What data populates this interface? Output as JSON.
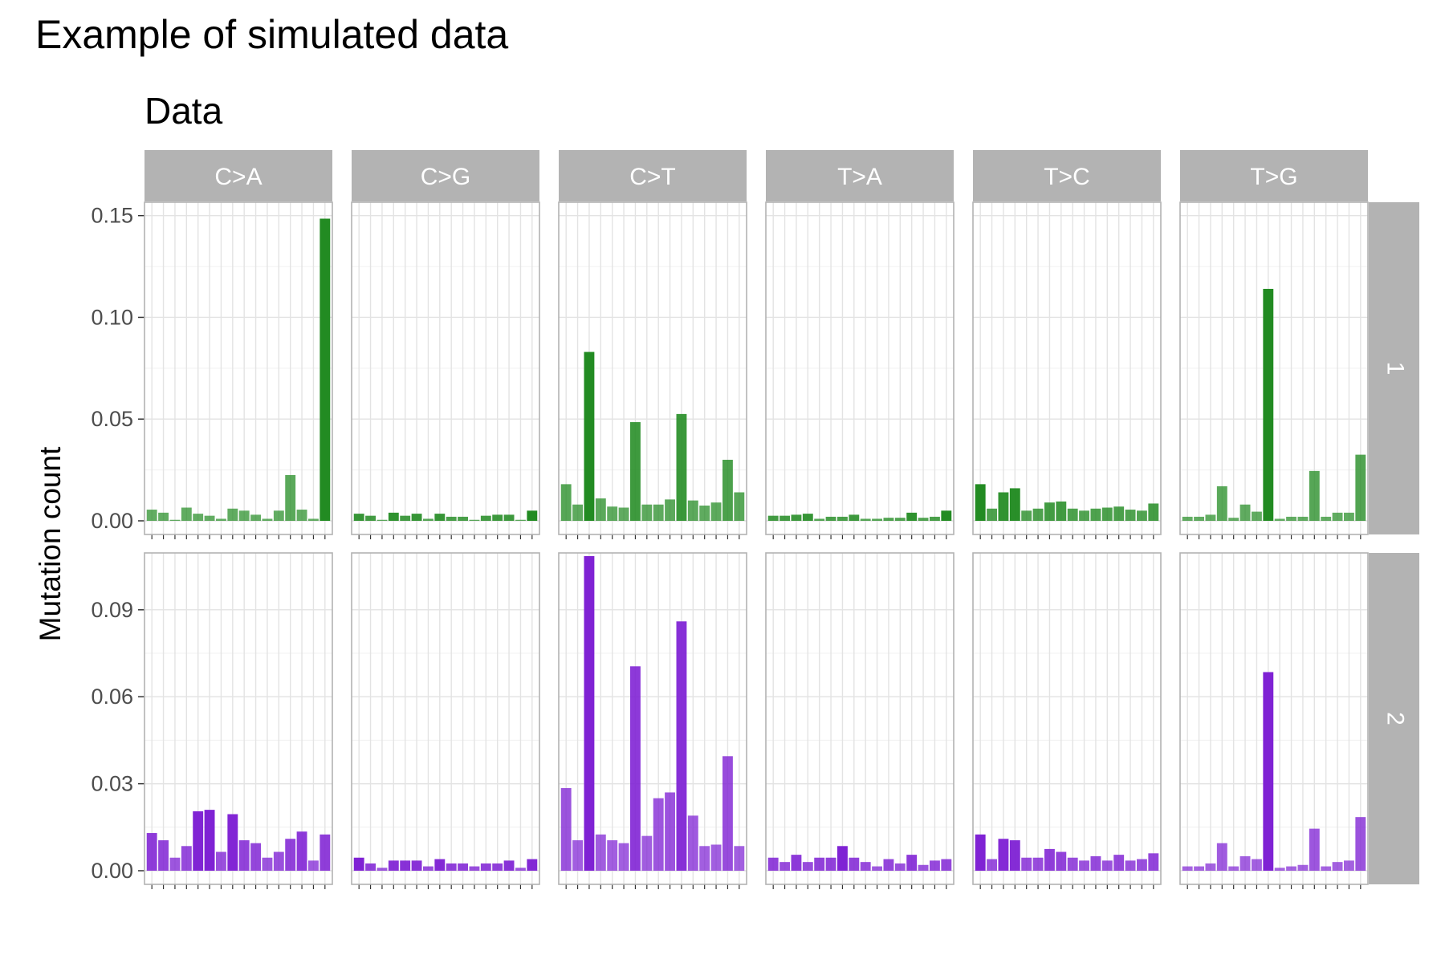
{
  "title": "Example of simulated data",
  "subtitle": "Data",
  "chart_data": {
    "type": "bar",
    "facet_columns": [
      "C>A",
      "C>G",
      "C>T",
      "T>A",
      "T>C",
      "T>G"
    ],
    "facet_rows": [
      "1",
      "2"
    ],
    "ylabel": "Mutation count",
    "xlabel": "",
    "grid": true,
    "rows": [
      {
        "label": "1",
        "color": "#228b22",
        "ylim": [
          0,
          0.155
        ],
        "yticks": [
          0.0,
          0.05,
          0.1,
          0.15
        ],
        "ytick_labels": [
          "0.00",
          "0.05",
          "0.10",
          "0.15"
        ],
        "values": [
          [
            0.0055,
            0.004,
            0.0005,
            0.0065,
            0.0035,
            0.0025,
            0.001,
            0.006,
            0.005,
            0.003,
            0.001,
            0.005,
            0.0225,
            0.0055,
            0.001,
            0.1485
          ],
          [
            0.0035,
            0.0025,
            0.0005,
            0.004,
            0.0025,
            0.0035,
            0.001,
            0.0035,
            0.002,
            0.002,
            0.0005,
            0.0025,
            0.003,
            0.003,
            0.0005,
            0.005
          ],
          [
            0.018,
            0.008,
            0.083,
            0.011,
            0.007,
            0.0065,
            0.0485,
            0.008,
            0.008,
            0.0105,
            0.0525,
            0.01,
            0.0075,
            0.009,
            0.03,
            0.014
          ],
          [
            0.0025,
            0.0025,
            0.003,
            0.0035,
            0.001,
            0.002,
            0.002,
            0.003,
            0.001,
            0.001,
            0.0015,
            0.0015,
            0.004,
            0.0015,
            0.002,
            0.005
          ],
          [
            0.018,
            0.006,
            0.014,
            0.016,
            0.005,
            0.006,
            0.009,
            0.0095,
            0.006,
            0.005,
            0.006,
            0.0065,
            0.007,
            0.0055,
            0.005,
            0.0085
          ],
          [
            0.002,
            0.002,
            0.003,
            0.017,
            0.0015,
            0.008,
            0.0045,
            0.114,
            0.001,
            0.002,
            0.002,
            0.0245,
            0.002,
            0.004,
            0.004,
            0.0325
          ]
        ]
      },
      {
        "label": "2",
        "color": "#7f22d4",
        "ylim": [
          0,
          0.1085
        ],
        "yticks": [
          0.0,
          0.03,
          0.06,
          0.09
        ],
        "ytick_labels": [
          "0.00",
          "0.03",
          "0.06",
          "0.09"
        ],
        "values": [
          [
            0.013,
            0.0105,
            0.0045,
            0.0085,
            0.0205,
            0.021,
            0.0065,
            0.0195,
            0.0105,
            0.0095,
            0.0045,
            0.0065,
            0.011,
            0.0135,
            0.0035,
            0.0125
          ],
          [
            0.0045,
            0.0025,
            0.001,
            0.0035,
            0.0035,
            0.0035,
            0.0015,
            0.004,
            0.0025,
            0.0025,
            0.0015,
            0.0025,
            0.0025,
            0.0035,
            0.001,
            0.004
          ],
          [
            0.0285,
            0.0105,
            0.1085,
            0.0125,
            0.0105,
            0.0095,
            0.0705,
            0.012,
            0.025,
            0.027,
            0.086,
            0.019,
            0.0085,
            0.009,
            0.0395,
            0.0085
          ],
          [
            0.0045,
            0.003,
            0.0055,
            0.003,
            0.0045,
            0.0045,
            0.0085,
            0.0045,
            0.003,
            0.0015,
            0.004,
            0.0025,
            0.0055,
            0.002,
            0.0035,
            0.004
          ],
          [
            0.0125,
            0.004,
            0.011,
            0.0105,
            0.0045,
            0.0045,
            0.0075,
            0.0065,
            0.0045,
            0.0035,
            0.005,
            0.0035,
            0.0055,
            0.0035,
            0.004,
            0.006
          ],
          [
            0.0015,
            0.0015,
            0.0025,
            0.0095,
            0.0015,
            0.005,
            0.004,
            0.0685,
            0.001,
            0.0015,
            0.002,
            0.0145,
            0.0015,
            0.003,
            0.0035,
            0.0185
          ]
        ]
      }
    ]
  }
}
